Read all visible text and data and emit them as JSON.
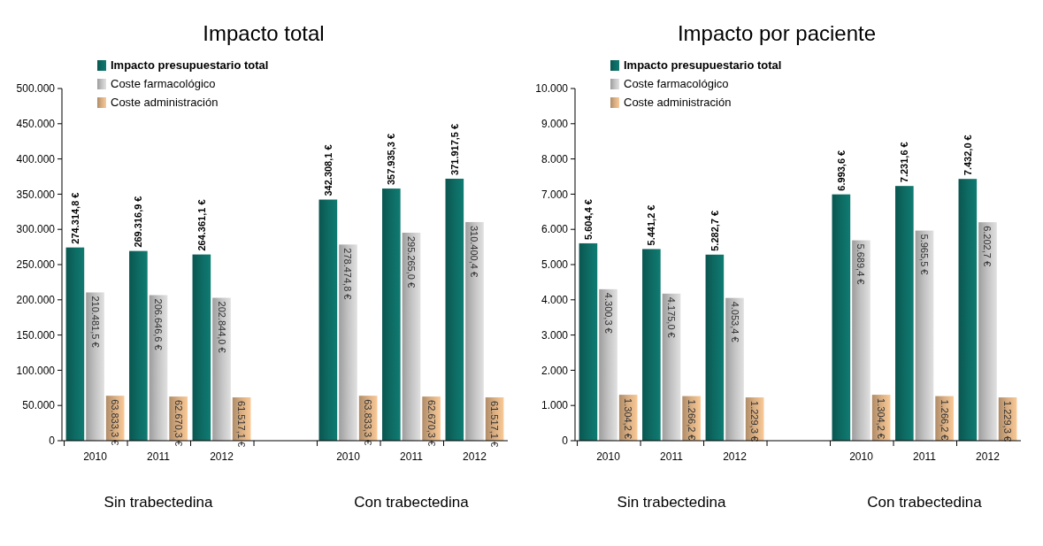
{
  "chart_data": [
    {
      "type": "bar",
      "title": "Impacto total",
      "categories": [
        "2010",
        "2011",
        "2012",
        null,
        "2010",
        "2011",
        "2012"
      ],
      "series": [
        {
          "name": "Impacto presupuestario total",
          "color": "#0d6b63",
          "values": [
            274314.8,
            269316.9,
            264361.1,
            null,
            342308.1,
            357935.3,
            371917.5
          ],
          "value_labels": [
            "274.314,8 €",
            "269.316,9 €",
            "264.361,1 €",
            null,
            "342.308,1 €",
            "357.935,3 €",
            "371.917,5 €"
          ]
        },
        {
          "name": "Coste farmacológico",
          "color": "#c3c3c3",
          "values": [
            210481.5,
            206646.6,
            202844.0,
            null,
            278474.8,
            295265.0,
            310400.4
          ],
          "value_labels": [
            "210.481,5 €",
            "206.646,6 €",
            "202.844,0 €",
            null,
            "278.474,8 €",
            "295.265,0 €",
            "310.400,4 €"
          ]
        },
        {
          "name": "Coste administración",
          "color": "#d9ae82",
          "values": [
            63833.3,
            62670.3,
            61517.1,
            null,
            63833.3,
            62670.3,
            61517.1
          ],
          "value_labels": [
            "63.833,3 €",
            "62.670,3 €",
            "61.517,1 €",
            null,
            "63.833,3 €",
            "62.670,3 €",
            "61.517,1 €"
          ]
        }
      ],
      "ylim": [
        0,
        500000
      ],
      "yticks": [
        {
          "value": 0,
          "label": "0"
        },
        {
          "value": 50000,
          "label": "50.000"
        },
        {
          "value": 100000,
          "label": "100.000"
        },
        {
          "value": 150000,
          "label": "150.000"
        },
        {
          "value": 200000,
          "label": "200.000"
        },
        {
          "value": 250000,
          "label": "250.000"
        },
        {
          "value": 300000,
          "label": "300.000"
        },
        {
          "value": 350000,
          "label": "350.000"
        },
        {
          "value": 400000,
          "label": "400.000"
        },
        {
          "value": 450000,
          "label": "450.000"
        },
        {
          "value": 500000,
          "label": "500.000"
        }
      ],
      "grid": false,
      "legend": "top left",
      "annotations": [
        "Sin trabectedina",
        "Con trabectedina"
      ]
    },
    {
      "type": "bar",
      "title": "Impacto por paciente",
      "categories": [
        "2010",
        "2011",
        "2012",
        null,
        "2010",
        "2011",
        "2012"
      ],
      "series": [
        {
          "name": "Impacto presupuestario total",
          "color": "#0d6b63",
          "values": [
            5604.4,
            5441.2,
            5282.7,
            null,
            6993.6,
            7231.6,
            7432.0
          ],
          "value_labels": [
            "5.604,4 €",
            "5.441,2 €",
            "5.282,7 €",
            null,
            "6.993,6 €",
            "7.231,6 €",
            "7.432,0 €"
          ]
        },
        {
          "name": "Coste farmacológico",
          "color": "#c3c3c3",
          "values": [
            4300.3,
            4175.0,
            4053.4,
            null,
            5689.4,
            5965.5,
            6202.7
          ],
          "value_labels": [
            "4.300,3 €",
            "4.175,0 €",
            "4.053,4 €",
            null,
            "5.689,4 €",
            "5.965,5 €",
            "6.202,7 €"
          ]
        },
        {
          "name": "Coste administración",
          "color": "#d9ae82",
          "values": [
            1304.2,
            1266.2,
            1229.3,
            null,
            1304.2,
            1266.2,
            1229.3
          ],
          "value_labels": [
            "1.304,2 €",
            "1.266,2 €",
            "1.229,3 €",
            null,
            "1.304,2 €",
            "1.266,2 €",
            "1.229,3 €"
          ]
        }
      ],
      "ylim": [
        0,
        10000
      ],
      "yticks": [
        {
          "value": 0,
          "label": "0"
        },
        {
          "value": 1000,
          "label": "1.000"
        },
        {
          "value": 2000,
          "label": "2.000"
        },
        {
          "value": 3000,
          "label": "3.000"
        },
        {
          "value": 4000,
          "label": "4.000"
        },
        {
          "value": 5000,
          "label": "5.000"
        },
        {
          "value": 6000,
          "label": "6.000"
        },
        {
          "value": 7000,
          "label": "7.000"
        },
        {
          "value": 8000,
          "label": "8.000"
        },
        {
          "value": 9000,
          "label": "9.000"
        },
        {
          "value": 10000,
          "label": "10.000"
        }
      ],
      "grid": false,
      "legend": "top left",
      "annotations": [
        "Sin trabectedina",
        "Con trabectedina"
      ]
    }
  ]
}
